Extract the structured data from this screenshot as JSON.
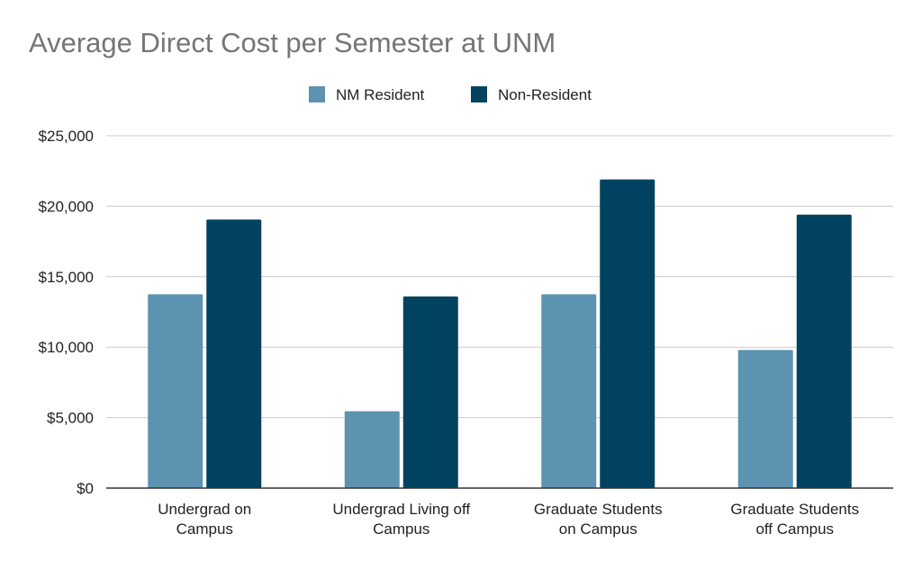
{
  "chart_data": {
    "type": "bar",
    "title": "Average Direct Cost per Semester at UNM",
    "categories": [
      [
        "Undergrad on",
        "Campus"
      ],
      [
        "Undergrad Living off",
        "Campus"
      ],
      [
        "Graduate Students",
        "on Campus"
      ],
      [
        "Graduate Students",
        "off Campus"
      ]
    ],
    "series": [
      {
        "name": "NM Resident",
        "color": "#5b93b0",
        "values": [
          13750,
          5450,
          13750,
          9800
        ]
      },
      {
        "name": "Non-Resident",
        "color": "#00425f",
        "values": [
          19050,
          13600,
          21900,
          19400
        ]
      }
    ],
    "y_ticks": [
      "$0",
      "$5,000",
      "$10,000",
      "$15,000",
      "$20,000",
      "$25,000"
    ],
    "ylim": [
      0,
      25000
    ],
    "grid": true,
    "legend_position": "top-center"
  }
}
